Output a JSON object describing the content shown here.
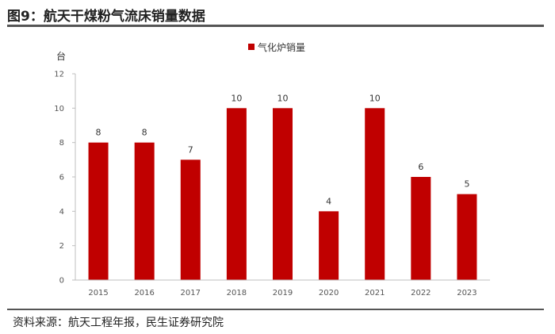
{
  "figure_title": "图9：航天干煤粉气流床销量数据",
  "source": "资料来源：航天工程年报，民生证券研究院",
  "colors": {
    "bar": "#C00000",
    "rule": "#555555",
    "axis": "#bfbfbf"
  },
  "chart_data": {
    "type": "bar",
    "title": "",
    "unit_label": "台",
    "xlabel": "",
    "ylabel": "",
    "categories": [
      "2015",
      "2016",
      "2017",
      "2018",
      "2019",
      "2020",
      "2021",
      "2022",
      "2023"
    ],
    "series": [
      {
        "name": "气化炉销量",
        "values": [
          8,
          8,
          7,
          10,
          10,
          4,
          10,
          6,
          5
        ]
      }
    ],
    "ylim": [
      0,
      12
    ],
    "yticks": [
      0,
      2,
      4,
      6,
      8,
      10,
      12
    ],
    "grid": false,
    "legend": "top-center",
    "data_labels": true
  }
}
